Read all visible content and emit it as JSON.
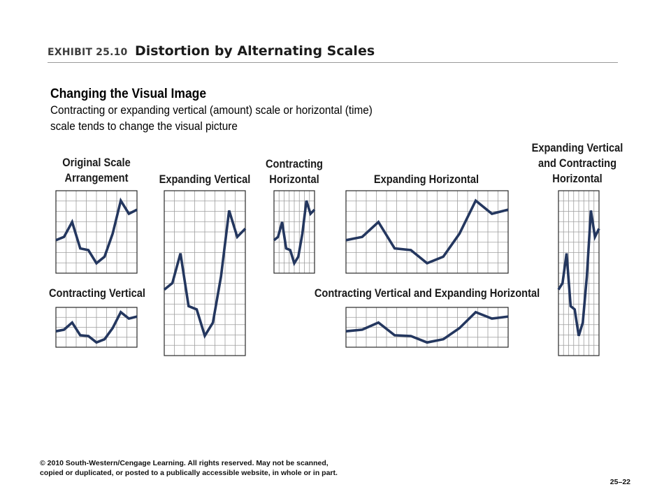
{
  "header": {
    "exhibit_label": "EXHIBIT 25.10",
    "exhibit_title": "Distortion by Alternating Scales"
  },
  "intro": {
    "title": "Changing the Visual Image",
    "body": "Contracting or expanding vertical (amount) scale or horizontal (time) scale tends to change the visual picture"
  },
  "colors": {
    "line": "#24375f",
    "grid": "#9e9e9e",
    "frame": "#2a2a2a"
  },
  "chart_data": [
    {
      "type": "line",
      "title": "Original Scale Arrangement",
      "x": [
        0,
        1,
        2,
        3,
        4,
        5,
        6,
        7,
        8,
        9,
        10
      ],
      "series": [
        {
          "values": [
            40,
            44,
            62,
            30,
            28,
            12,
            20,
            48,
            88,
            72,
            77
          ]
        }
      ],
      "ylim": [
        0,
        100
      ],
      "grid": true
    },
    {
      "type": "line",
      "title": "Expanding Vertical",
      "x": [
        0,
        1,
        2,
        3,
        4,
        5,
        6,
        7,
        8,
        9,
        10
      ],
      "series": [
        {
          "values": [
            40,
            44,
            62,
            30,
            28,
            12,
            20,
            48,
            88,
            72,
            77
          ]
        }
      ],
      "ylim": [
        0,
        100
      ],
      "grid": true
    },
    {
      "type": "line",
      "title": "Contracting Horizontal",
      "x": [
        0,
        1,
        2,
        3,
        4,
        5,
        6,
        7,
        8,
        9,
        10
      ],
      "series": [
        {
          "values": [
            40,
            44,
            62,
            30,
            28,
            12,
            20,
            48,
            88,
            72,
            77
          ]
        }
      ],
      "ylim": [
        0,
        100
      ],
      "grid": true
    },
    {
      "type": "line",
      "title": "Expanding Horizontal",
      "x": [
        0,
        1,
        2,
        3,
        4,
        5,
        6,
        7,
        8,
        9,
        10
      ],
      "series": [
        {
          "values": [
            40,
            44,
            62,
            30,
            28,
            12,
            20,
            48,
            88,
            72,
            77
          ]
        }
      ],
      "ylim": [
        0,
        100
      ],
      "grid": true
    },
    {
      "type": "line",
      "title": "Expanding Vertical and Contracting Horizontal",
      "x": [
        0,
        1,
        2,
        3,
        4,
        5,
        6,
        7,
        8,
        9,
        10
      ],
      "series": [
        {
          "values": [
            40,
            44,
            62,
            30,
            28,
            12,
            20,
            48,
            88,
            72,
            77
          ]
        }
      ],
      "ylim": [
        0,
        100
      ],
      "grid": true
    },
    {
      "type": "line",
      "title": "Contracting Vertical",
      "x": [
        0,
        1,
        2,
        3,
        4,
        5,
        6,
        7,
        8,
        9,
        10
      ],
      "series": [
        {
          "values": [
            40,
            44,
            62,
            30,
            28,
            12,
            20,
            48,
            88,
            72,
            77
          ]
        }
      ],
      "ylim": [
        0,
        100
      ],
      "grid": true
    },
    {
      "type": "line",
      "title": "Contracting Vertical and Expanding Horizontal",
      "x": [
        0,
        1,
        2,
        3,
        4,
        5,
        6,
        7,
        8,
        9,
        10
      ],
      "series": [
        {
          "values": [
            40,
            44,
            62,
            30,
            28,
            12,
            20,
            48,
            88,
            72,
            77
          ]
        }
      ],
      "ylim": [
        0,
        100
      ],
      "grid": true
    }
  ],
  "footer": {
    "copyright": "© 2010 South-Western/Cengage Learning. All rights reserved. May not be scanned, copied or duplicated, or posted to a publically accessible website, in whole or in part.",
    "page": "25–22"
  }
}
